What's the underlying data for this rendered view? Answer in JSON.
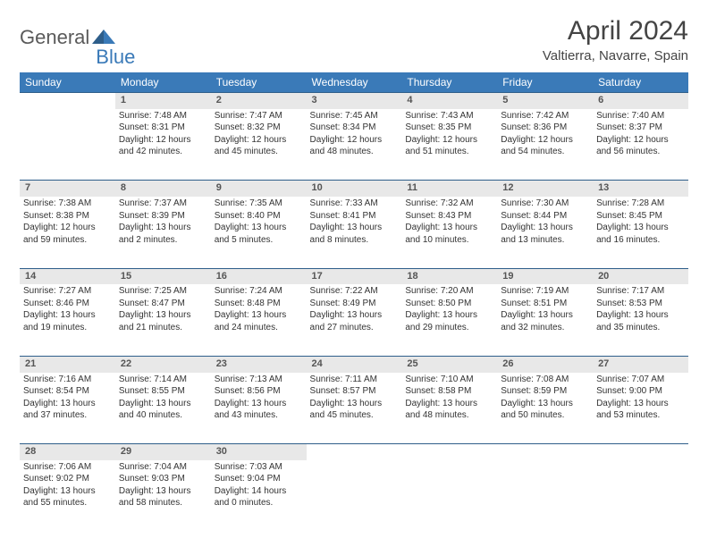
{
  "logo": {
    "text1": "General",
    "text2": "Blue"
  },
  "title": "April 2024",
  "location": "Valtierra, Navarre, Spain",
  "colors": {
    "header_bg": "#3a7ab8",
    "header_text": "#ffffff",
    "daynum_bg": "#e8e8e8",
    "border": "#2e5e8a",
    "logo_gray": "#5a5a5a",
    "logo_blue": "#3a7ab8"
  },
  "weekdays": [
    "Sunday",
    "Monday",
    "Tuesday",
    "Wednesday",
    "Thursday",
    "Friday",
    "Saturday"
  ],
  "weeks": [
    {
      "nums": [
        "",
        "1",
        "2",
        "3",
        "4",
        "5",
        "6"
      ],
      "cells": [
        null,
        {
          "sunrise": "Sunrise: 7:48 AM",
          "sunset": "Sunset: 8:31 PM",
          "day1": "Daylight: 12 hours",
          "day2": "and 42 minutes."
        },
        {
          "sunrise": "Sunrise: 7:47 AM",
          "sunset": "Sunset: 8:32 PM",
          "day1": "Daylight: 12 hours",
          "day2": "and 45 minutes."
        },
        {
          "sunrise": "Sunrise: 7:45 AM",
          "sunset": "Sunset: 8:34 PM",
          "day1": "Daylight: 12 hours",
          "day2": "and 48 minutes."
        },
        {
          "sunrise": "Sunrise: 7:43 AM",
          "sunset": "Sunset: 8:35 PM",
          "day1": "Daylight: 12 hours",
          "day2": "and 51 minutes."
        },
        {
          "sunrise": "Sunrise: 7:42 AM",
          "sunset": "Sunset: 8:36 PM",
          "day1": "Daylight: 12 hours",
          "day2": "and 54 minutes."
        },
        {
          "sunrise": "Sunrise: 7:40 AM",
          "sunset": "Sunset: 8:37 PM",
          "day1": "Daylight: 12 hours",
          "day2": "and 56 minutes."
        }
      ]
    },
    {
      "nums": [
        "7",
        "8",
        "9",
        "10",
        "11",
        "12",
        "13"
      ],
      "cells": [
        {
          "sunrise": "Sunrise: 7:38 AM",
          "sunset": "Sunset: 8:38 PM",
          "day1": "Daylight: 12 hours",
          "day2": "and 59 minutes."
        },
        {
          "sunrise": "Sunrise: 7:37 AM",
          "sunset": "Sunset: 8:39 PM",
          "day1": "Daylight: 13 hours",
          "day2": "and 2 minutes."
        },
        {
          "sunrise": "Sunrise: 7:35 AM",
          "sunset": "Sunset: 8:40 PM",
          "day1": "Daylight: 13 hours",
          "day2": "and 5 minutes."
        },
        {
          "sunrise": "Sunrise: 7:33 AM",
          "sunset": "Sunset: 8:41 PM",
          "day1": "Daylight: 13 hours",
          "day2": "and 8 minutes."
        },
        {
          "sunrise": "Sunrise: 7:32 AM",
          "sunset": "Sunset: 8:43 PM",
          "day1": "Daylight: 13 hours",
          "day2": "and 10 minutes."
        },
        {
          "sunrise": "Sunrise: 7:30 AM",
          "sunset": "Sunset: 8:44 PM",
          "day1": "Daylight: 13 hours",
          "day2": "and 13 minutes."
        },
        {
          "sunrise": "Sunrise: 7:28 AM",
          "sunset": "Sunset: 8:45 PM",
          "day1": "Daylight: 13 hours",
          "day2": "and 16 minutes."
        }
      ]
    },
    {
      "nums": [
        "14",
        "15",
        "16",
        "17",
        "18",
        "19",
        "20"
      ],
      "cells": [
        {
          "sunrise": "Sunrise: 7:27 AM",
          "sunset": "Sunset: 8:46 PM",
          "day1": "Daylight: 13 hours",
          "day2": "and 19 minutes."
        },
        {
          "sunrise": "Sunrise: 7:25 AM",
          "sunset": "Sunset: 8:47 PM",
          "day1": "Daylight: 13 hours",
          "day2": "and 21 minutes."
        },
        {
          "sunrise": "Sunrise: 7:24 AM",
          "sunset": "Sunset: 8:48 PM",
          "day1": "Daylight: 13 hours",
          "day2": "and 24 minutes."
        },
        {
          "sunrise": "Sunrise: 7:22 AM",
          "sunset": "Sunset: 8:49 PM",
          "day1": "Daylight: 13 hours",
          "day2": "and 27 minutes."
        },
        {
          "sunrise": "Sunrise: 7:20 AM",
          "sunset": "Sunset: 8:50 PM",
          "day1": "Daylight: 13 hours",
          "day2": "and 29 minutes."
        },
        {
          "sunrise": "Sunrise: 7:19 AM",
          "sunset": "Sunset: 8:51 PM",
          "day1": "Daylight: 13 hours",
          "day2": "and 32 minutes."
        },
        {
          "sunrise": "Sunrise: 7:17 AM",
          "sunset": "Sunset: 8:53 PM",
          "day1": "Daylight: 13 hours",
          "day2": "and 35 minutes."
        }
      ]
    },
    {
      "nums": [
        "21",
        "22",
        "23",
        "24",
        "25",
        "26",
        "27"
      ],
      "cells": [
        {
          "sunrise": "Sunrise: 7:16 AM",
          "sunset": "Sunset: 8:54 PM",
          "day1": "Daylight: 13 hours",
          "day2": "and 37 minutes."
        },
        {
          "sunrise": "Sunrise: 7:14 AM",
          "sunset": "Sunset: 8:55 PM",
          "day1": "Daylight: 13 hours",
          "day2": "and 40 minutes."
        },
        {
          "sunrise": "Sunrise: 7:13 AM",
          "sunset": "Sunset: 8:56 PM",
          "day1": "Daylight: 13 hours",
          "day2": "and 43 minutes."
        },
        {
          "sunrise": "Sunrise: 7:11 AM",
          "sunset": "Sunset: 8:57 PM",
          "day1": "Daylight: 13 hours",
          "day2": "and 45 minutes."
        },
        {
          "sunrise": "Sunrise: 7:10 AM",
          "sunset": "Sunset: 8:58 PM",
          "day1": "Daylight: 13 hours",
          "day2": "and 48 minutes."
        },
        {
          "sunrise": "Sunrise: 7:08 AM",
          "sunset": "Sunset: 8:59 PM",
          "day1": "Daylight: 13 hours",
          "day2": "and 50 minutes."
        },
        {
          "sunrise": "Sunrise: 7:07 AM",
          "sunset": "Sunset: 9:00 PM",
          "day1": "Daylight: 13 hours",
          "day2": "and 53 minutes."
        }
      ]
    },
    {
      "nums": [
        "28",
        "29",
        "30",
        "",
        "",
        "",
        ""
      ],
      "cells": [
        {
          "sunrise": "Sunrise: 7:06 AM",
          "sunset": "Sunset: 9:02 PM",
          "day1": "Daylight: 13 hours",
          "day2": "and 55 minutes."
        },
        {
          "sunrise": "Sunrise: 7:04 AM",
          "sunset": "Sunset: 9:03 PM",
          "day1": "Daylight: 13 hours",
          "day2": "and 58 minutes."
        },
        {
          "sunrise": "Sunrise: 7:03 AM",
          "sunset": "Sunset: 9:04 PM",
          "day1": "Daylight: 14 hours",
          "day2": "and 0 minutes."
        },
        null,
        null,
        null,
        null
      ]
    }
  ]
}
